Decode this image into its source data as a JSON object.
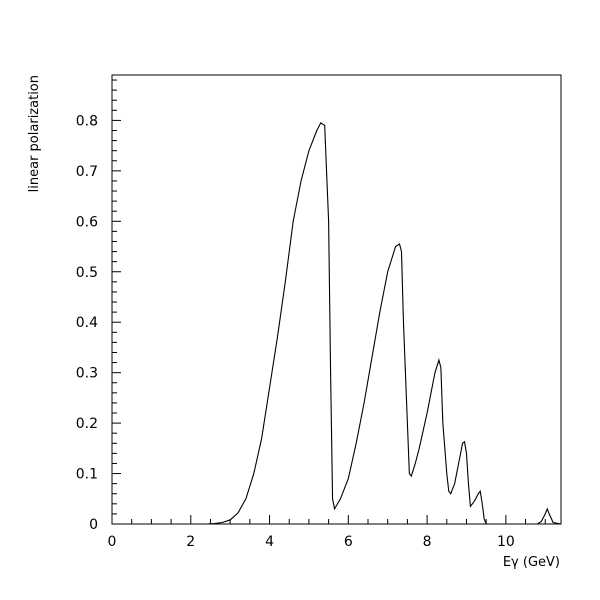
{
  "chart_data": {
    "type": "line",
    "xlabel": "Eγ (GeV)",
    "ylabel": "linear polarization",
    "xlim": [
      0,
      11.4
    ],
    "ylim": [
      0,
      0.89
    ],
    "grid": false,
    "x_ticks": [
      0,
      2,
      4,
      6,
      8,
      10
    ],
    "x_tick_labels": [
      "0",
      "2",
      "4",
      "6",
      "8",
      "10"
    ],
    "y_ticks": [
      0,
      0.1,
      0.2,
      0.3,
      0.4,
      0.5,
      0.6,
      0.7,
      0.8
    ],
    "y_tick_labels": [
      "0",
      "0.1",
      "0.2",
      "0.3",
      "0.4",
      "0.5",
      "0.6",
      "0.7",
      "0.8"
    ],
    "series": [
      {
        "color": "#000000",
        "x": [
          2.4,
          2.6,
          2.8,
          3.0,
          3.2,
          3.4,
          3.6,
          3.8,
          4.0,
          4.2,
          4.4,
          4.6,
          4.8,
          5.0,
          5.2,
          5.3,
          5.4,
          5.5,
          5.55,
          5.6,
          5.65,
          5.8,
          6.0,
          6.2,
          6.4,
          6.6,
          6.8,
          7.0,
          7.2,
          7.3,
          7.35,
          7.4,
          7.5,
          7.55,
          7.6,
          7.7,
          7.8,
          8.0,
          8.2,
          8.3,
          8.35,
          8.4,
          8.5,
          8.55,
          8.6,
          8.7,
          8.8,
          8.9,
          8.95,
          9.0,
          9.05,
          9.1,
          9.2,
          9.3,
          9.35,
          9.4,
          9.45,
          9.5,
          10.6,
          10.8,
          10.9,
          11.0,
          11.05,
          11.1,
          11.2,
          11.4
        ],
        "y": [
          0.0,
          0.001,
          0.003,
          0.008,
          0.022,
          0.05,
          0.1,
          0.17,
          0.27,
          0.37,
          0.48,
          0.6,
          0.68,
          0.74,
          0.78,
          0.795,
          0.79,
          0.6,
          0.3,
          0.05,
          0.03,
          0.05,
          0.09,
          0.16,
          0.24,
          0.33,
          0.42,
          0.5,
          0.55,
          0.555,
          0.54,
          0.4,
          0.2,
          0.1,
          0.095,
          0.12,
          0.15,
          0.22,
          0.3,
          0.325,
          0.31,
          0.2,
          0.1,
          0.065,
          0.06,
          0.08,
          0.12,
          0.16,
          0.163,
          0.14,
          0.08,
          0.035,
          0.045,
          0.06,
          0.065,
          0.04,
          0.01,
          0.0,
          0.0,
          0.0,
          0.005,
          0.02,
          0.03,
          0.02,
          0.003,
          0.0
        ]
      }
    ]
  }
}
